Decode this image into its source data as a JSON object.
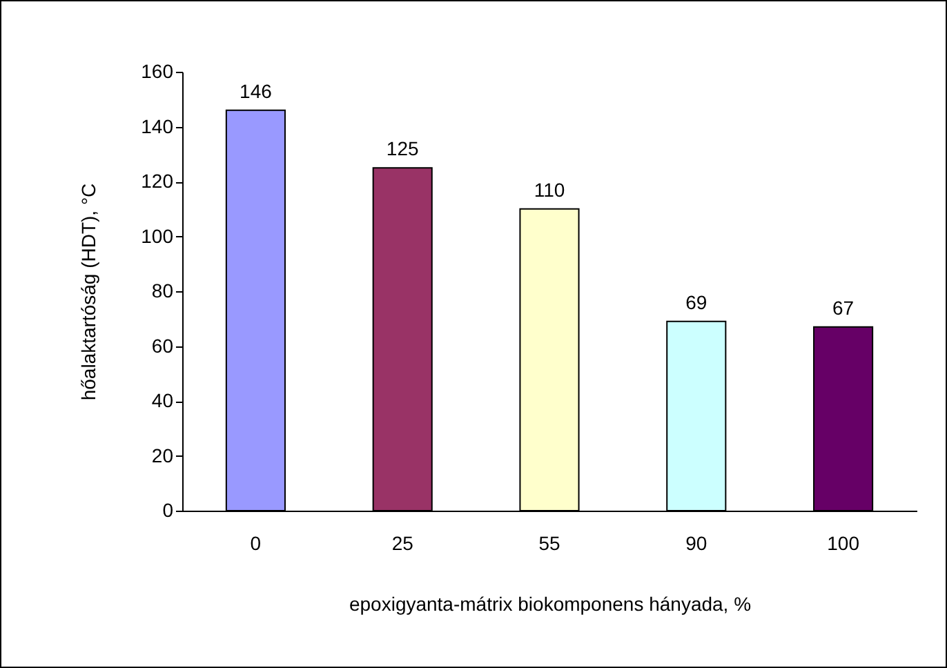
{
  "chart_data": {
    "type": "bar",
    "xlabel": "epoxigyanta-mátrix biokomponens hányada, %",
    "ylabel": "hőalaktartóság (HDT), °C",
    "categories": [
      "0",
      "25",
      "55",
      "90",
      "100"
    ],
    "values": [
      146,
      125,
      110,
      69,
      67
    ],
    "colors": [
      "#9999ff",
      "#993366",
      "#ffffcc",
      "#ccffff",
      "#660066"
    ],
    "ylim": [
      0,
      160
    ],
    "yticks": [
      0,
      20,
      40,
      60,
      80,
      100,
      120,
      140,
      160
    ],
    "data_labels": true,
    "grid": false
  }
}
